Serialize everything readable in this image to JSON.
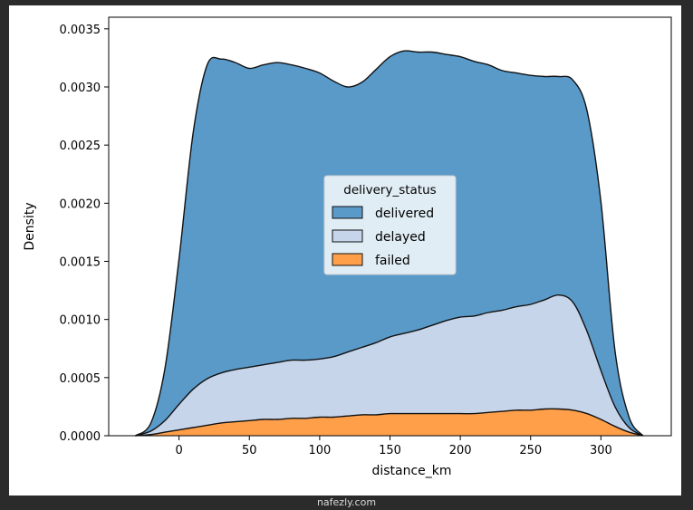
{
  "watermark": "nafezly.com",
  "chart_data": {
    "type": "area",
    "stacked": true,
    "xlabel": "distance_km",
    "ylabel": "Density",
    "xlim": [
      -50,
      350
    ],
    "ylim": [
      0,
      0.0036
    ],
    "xticks": [
      0,
      50,
      100,
      150,
      200,
      250,
      300
    ],
    "yticks": [
      0.0,
      0.0005,
      0.001,
      0.0015,
      0.002,
      0.0025,
      0.003,
      0.0035
    ],
    "ytick_labels": [
      "0.0000",
      "0.0005",
      "0.0010",
      "0.0015",
      "0.0020",
      "0.0025",
      "0.0030",
      "0.0035"
    ],
    "legend": {
      "title": "delivery_status",
      "placement": "center"
    },
    "x": [
      -31,
      -20,
      -10,
      0,
      10,
      20,
      30,
      40,
      50,
      60,
      70,
      80,
      90,
      100,
      110,
      120,
      130,
      140,
      150,
      160,
      170,
      180,
      190,
      200,
      210,
      220,
      230,
      240,
      250,
      260,
      270,
      280,
      290,
      300,
      310,
      320,
      330
    ],
    "series": [
      {
        "name": "failed",
        "color": "#ff9f4a",
        "values": [
          0.0,
          1e-05,
          3e-05,
          5e-05,
          7e-05,
          9e-05,
          0.00011,
          0.00012,
          0.00013,
          0.00014,
          0.00014,
          0.00015,
          0.00015,
          0.00016,
          0.00016,
          0.00017,
          0.00018,
          0.00018,
          0.00019,
          0.00019,
          0.00019,
          0.00019,
          0.00019,
          0.00019,
          0.00019,
          0.0002,
          0.00021,
          0.00022,
          0.00022,
          0.00023,
          0.00023,
          0.00022,
          0.00019,
          0.00014,
          8e-05,
          3e-05,
          0.0
        ]
      },
      {
        "name": "delayed",
        "color": "#c6d5ea",
        "values": [
          0.0,
          3e-05,
          0.0001,
          0.00022,
          0.00033,
          0.0004,
          0.00043,
          0.00045,
          0.00046,
          0.00047,
          0.00049,
          0.0005,
          0.0005,
          0.0005,
          0.00052,
          0.00055,
          0.00058,
          0.00062,
          0.00066,
          0.00069,
          0.00072,
          0.00076,
          0.0008,
          0.00083,
          0.00084,
          0.00086,
          0.00087,
          0.00089,
          0.00091,
          0.00094,
          0.00098,
          0.00093,
          0.00071,
          0.00042,
          0.00017,
          4e-05,
          0.0
        ]
      },
      {
        "name": "delivered",
        "color": "#5a9ac9",
        "values": [
          0.0,
          7e-05,
          0.00045,
          0.00125,
          0.0022,
          0.0027,
          0.0027,
          0.00264,
          0.00257,
          0.00258,
          0.00258,
          0.00254,
          0.00251,
          0.00246,
          0.00237,
          0.00228,
          0.00228,
          0.00235,
          0.00241,
          0.00243,
          0.00239,
          0.00235,
          0.00229,
          0.00224,
          0.00219,
          0.00213,
          0.00206,
          0.00201,
          0.00197,
          0.00192,
          0.00188,
          0.00191,
          0.0019,
          0.00145,
          0.00048,
          9e-05,
          0.0
        ]
      }
    ]
  }
}
